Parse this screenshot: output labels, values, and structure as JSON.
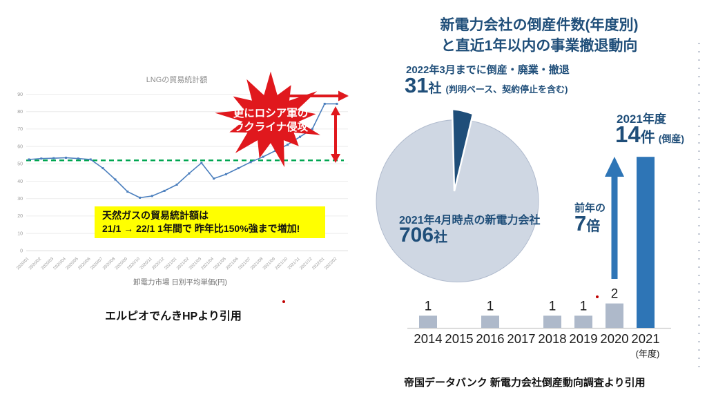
{
  "left": {
    "burst": {
      "line1": "更にロシア軍の",
      "line2": "ウクライナ侵攻"
    },
    "note": {
      "line1": "天然ガスの貿易統計額は",
      "line2": "21/1 → 22/1 1年間で 昨年比150%強まで増加!"
    },
    "caption": "エルピオでんきHPより引用"
  },
  "right": {
    "title_line1": "新電力会社の倒産件数(年度別)",
    "title_line2": "と直近1年以内の事業撤退動向",
    "subtitle": "2022年3月までに倒産・廃業・撤退",
    "stat_withdrawn": {
      "value": "31",
      "unit": "社",
      "note": "(判明ベース、契約停止を含む)"
    },
    "pie_caption": "2021年4月時点の新電力会社",
    "pie_value": "706",
    "pie_unit": "社",
    "y2021": {
      "label": "2021年度",
      "value": "14",
      "unit": "件",
      "note": "(倒産)"
    },
    "multiplier": {
      "prefix": "前年の",
      "value": "7",
      "unit": "倍"
    },
    "caption": "帝国データバンク 新電力会社倒産動向調査より引用"
  },
  "colors": {
    "navy": "#1F4E79",
    "accent_blue": "#2E75B6",
    "bar_gray": "#AEB9CA",
    "pie_light": "#CFD7E3",
    "line_blue": "#4A7EBD",
    "reference_green": "#00A651",
    "annotation_red": "#E0181D",
    "note_yellow": "#FFFF00"
  },
  "chart_data": [
    {
      "id": "lng-trade-line",
      "type": "line",
      "title": "LNGの貿易統計額",
      "xlabel": "卸電力市場 日別平均単価(円)",
      "x": [
        "2020/01",
        "2020/02",
        "2020/03",
        "2020/04",
        "2020/05",
        "2020/06",
        "2020/07",
        "2020/08",
        "2020/09",
        "2020/10",
        "2020/11",
        "2020/12",
        "2021/01",
        "2021/02",
        "2021/03",
        "2021/04",
        "2021/05",
        "2021/06",
        "2021/07",
        "2021/08",
        "2021/09",
        "2021/10",
        "2021/11",
        "2021/12",
        "2022/01",
        "2022/02"
      ],
      "values": [
        52.5,
        53,
        53.2,
        53.5,
        53,
        52.5,
        47.5,
        41,
        34,
        30.5,
        31.5,
        34.5,
        38,
        44.5,
        50.5,
        41.5,
        44,
        47.5,
        51,
        54,
        57.5,
        61,
        65.5,
        70,
        84.5,
        84.5
      ],
      "ylim": [
        0,
        90
      ],
      "ytick_step": 10,
      "yticks": [
        0,
        10,
        20,
        30,
        40,
        50,
        60,
        70,
        80,
        90
      ],
      "reference_line": 52,
      "grid": true,
      "line_color": "#4A7EBD",
      "reference_color": "#00A651",
      "legend": "none"
    },
    {
      "id": "newpower-pie",
      "type": "pie",
      "slices": [
        {
          "label": "2021年4月時点の新電力会社",
          "value": 706,
          "color": "#CFD7E3"
        },
        {
          "label": "2022年3月までに倒産・廃業・撤退",
          "value": 31,
          "color": "#1F4E79"
        }
      ],
      "legend": "none"
    },
    {
      "id": "bankruptcy-bars",
      "type": "bar",
      "categories": [
        "2014",
        "2015",
        "2016",
        "2017",
        "2018",
        "2019",
        "2020",
        "2021"
      ],
      "values": [
        1,
        0,
        1,
        0,
        1,
        1,
        2,
        14
      ],
      "xlabel_note": "(年度)",
      "bar_colors": {
        "default": "#AEB9CA",
        "highlight": "#2E75B6",
        "highlight_index": 7
      },
      "ylim": [
        0,
        14
      ],
      "grid": false
    }
  ]
}
